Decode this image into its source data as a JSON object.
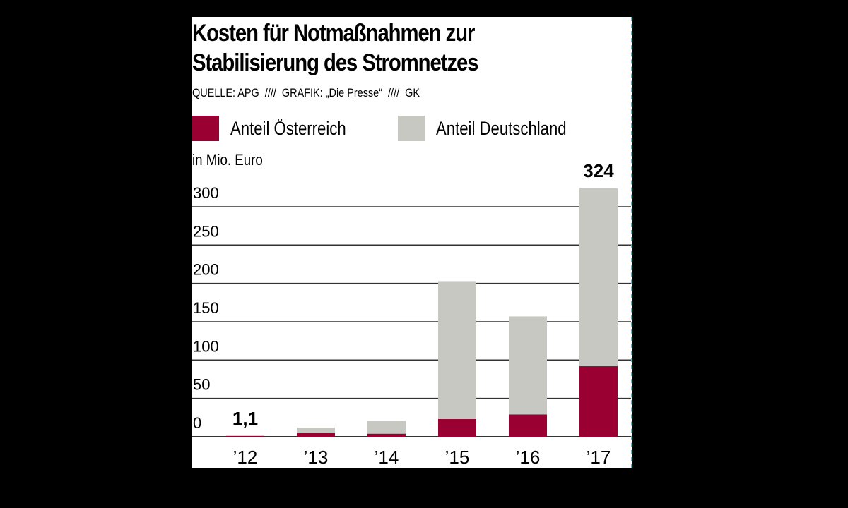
{
  "chart_data": {
    "type": "bar",
    "stacked": true,
    "title": "Kosten für Notmaßnahmen zur Stabilisierung des Stromnetzes",
    "title_lines": [
      "Kosten für Notmaßnahmen zur",
      "Stabilisierung des Stromnetzes"
    ],
    "subtitle": "QUELLE: APG  ////  GRAFIK: „Die Presse“  ////  GK",
    "ylabel": "in Mio. Euro",
    "xlabel": "",
    "categories": [
      "’12",
      "’13",
      "’14",
      "’15",
      "’16",
      "’17"
    ],
    "series": [
      {
        "name": "Anteil Österreich",
        "color": "#9b0032",
        "values": [
          1.1,
          5,
          4,
          23,
          29,
          92
        ]
      },
      {
        "name": "Anteil Deutschland",
        "color": "#c8c8c3",
        "values": [
          0,
          7,
          17,
          180,
          128,
          232
        ]
      }
    ],
    "totals": [
      1.1,
      12,
      21,
      203,
      157,
      324
    ],
    "data_labels": [
      {
        "category_index": 0,
        "text": "1,1"
      },
      {
        "category_index": 5,
        "text": "324"
      }
    ],
    "yticks": [
      0,
      50,
      100,
      150,
      200,
      250,
      300
    ],
    "ytick_labels": [
      "0",
      "50",
      "100",
      "150",
      "200",
      "250",
      "300"
    ],
    "ylim": [
      0,
      324
    ],
    "grid": true,
    "legend_position": "top"
  }
}
